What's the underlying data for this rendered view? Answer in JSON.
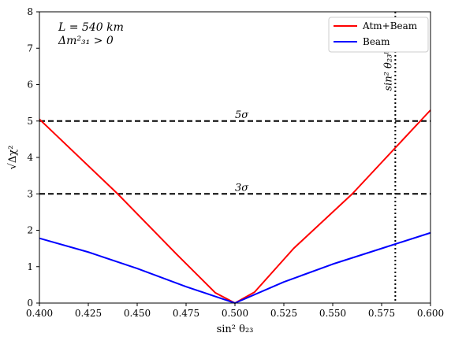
{
  "chart_data": {
    "type": "line",
    "xlabel": "sin² θ₂₃",
    "ylabel": "√Δχ²",
    "xlim": [
      0.4,
      0.6
    ],
    "ylim": [
      0,
      8
    ],
    "xticks": [
      "0.400",
      "0.425",
      "0.450",
      "0.475",
      "0.500",
      "0.525",
      "0.550",
      "0.575",
      "0.600"
    ],
    "xtick_values": [
      0.4,
      0.425,
      0.45,
      0.475,
      0.5,
      0.525,
      0.55,
      0.575,
      0.6
    ],
    "yticks": [
      "0",
      "1",
      "2",
      "3",
      "4",
      "5",
      "6",
      "7",
      "8"
    ],
    "ytick_values": [
      0,
      1,
      2,
      3,
      4,
      5,
      6,
      7,
      8
    ],
    "annotations": {
      "line1": "L = 540 km",
      "line2": "Δm²₃₁ > 0"
    },
    "legend_position": "top-right",
    "series": [
      {
        "name": "Atm+Beam",
        "color": "#ff0000",
        "x": [
          0.4,
          0.44,
          0.47,
          0.49,
          0.5,
          0.51,
          0.53,
          0.56,
          0.6
        ],
        "y": [
          5.05,
          3.0,
          1.35,
          0.28,
          0.0,
          0.3,
          1.5,
          3.0,
          5.3
        ]
      },
      {
        "name": "Beam",
        "color": "#0000ff",
        "x": [
          0.4,
          0.425,
          0.45,
          0.475,
          0.5,
          0.525,
          0.55,
          0.575,
          0.6
        ],
        "y": [
          1.78,
          1.4,
          0.95,
          0.45,
          0.0,
          0.58,
          1.07,
          1.5,
          1.93
        ]
      }
    ],
    "reference_lines": [
      {
        "orientation": "horizontal",
        "value": 5,
        "label": "5σ",
        "style": "dashed",
        "color": "#000000"
      },
      {
        "orientation": "horizontal",
        "value": 3,
        "label": "3σ",
        "style": "dashed",
        "color": "#000000"
      },
      {
        "orientation": "vertical",
        "value": 0.582,
        "label": "sin² θ₂₃ᵇᶠ",
        "style": "dotted",
        "color": "#000000"
      }
    ],
    "grid": false
  }
}
